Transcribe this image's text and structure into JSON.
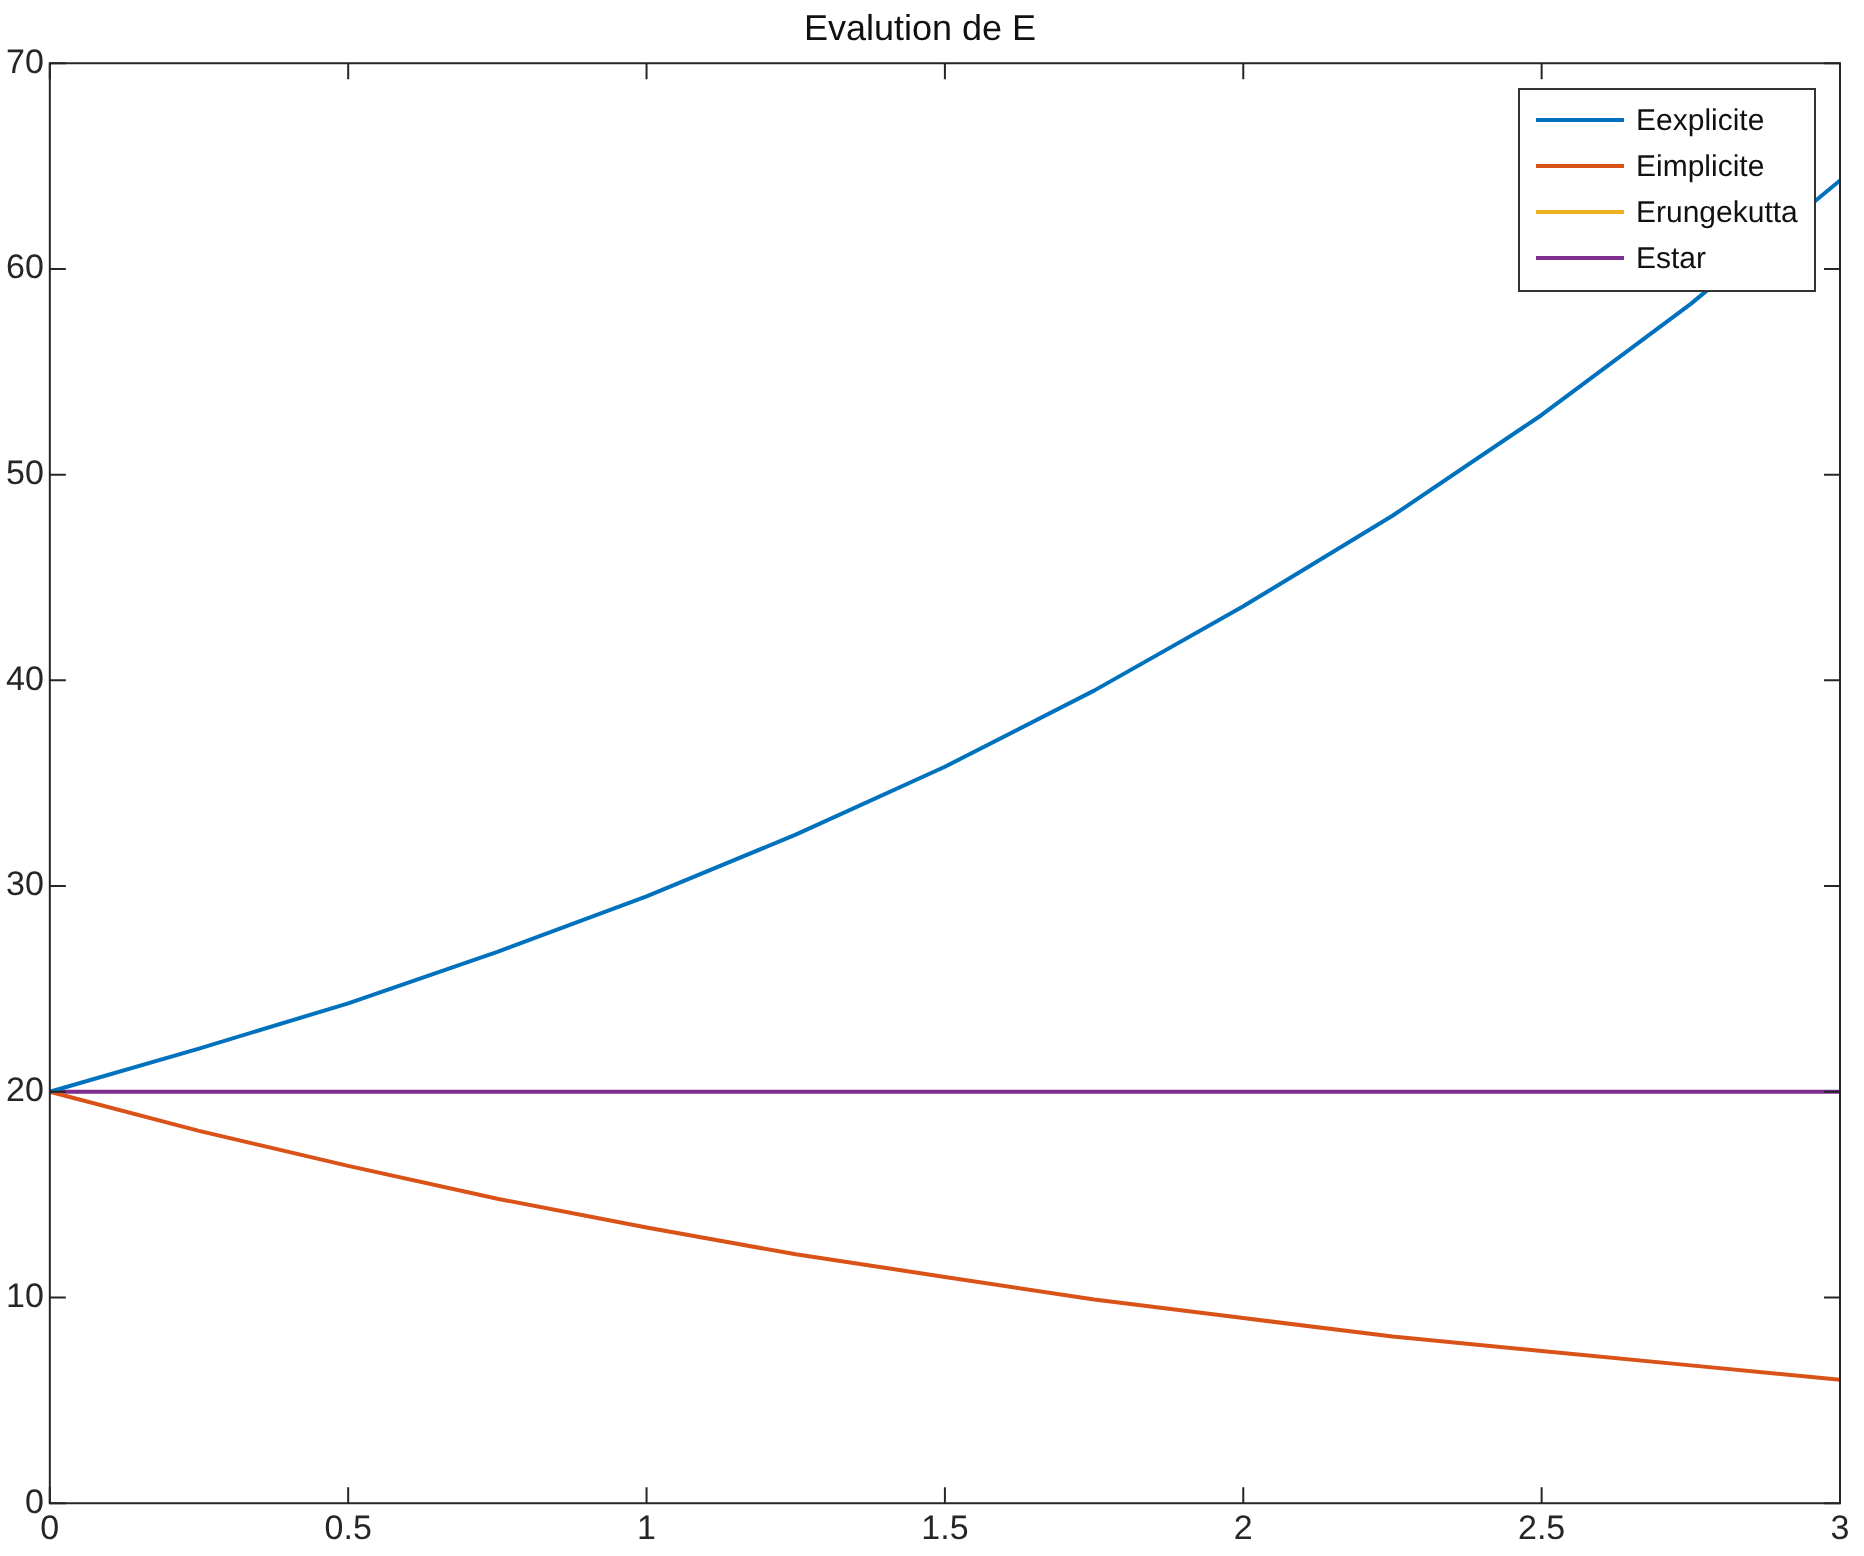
{
  "chart_data": {
    "type": "line",
    "title": "Evalution de E",
    "x": [
      0,
      0.25,
      0.5,
      0.75,
      1,
      1.25,
      1.5,
      1.75,
      2,
      2.25,
      2.5,
      2.75,
      3
    ],
    "series": [
      {
        "name": "Eexplicite",
        "color": "#0072bd",
        "values": [
          20,
          22.1,
          24.3,
          26.8,
          29.5,
          32.5,
          35.8,
          39.5,
          43.6,
          48.0,
          52.9,
          58.3,
          64.3
        ]
      },
      {
        "name": "Eimplicite",
        "color": "#d95319",
        "values": [
          20,
          18.1,
          16.4,
          14.8,
          13.4,
          12.1,
          11.0,
          9.9,
          9.0,
          8.1,
          7.4,
          6.7,
          6.0
        ]
      },
      {
        "name": "Erungekutta",
        "color": "#edb120",
        "values": [
          null,
          null,
          null,
          null,
          null,
          null,
          null,
          null,
          null,
          null,
          null,
          null,
          null
        ]
      },
      {
        "name": "Estar",
        "color": "#7e2f8e",
        "values": [
          20,
          20,
          20,
          20,
          20,
          20,
          20,
          20,
          20,
          20,
          20,
          20,
          20
        ]
      }
    ],
    "xlim": [
      0,
      3
    ],
    "xticks": [
      0,
      0.5,
      1,
      1.5,
      2,
      2.5,
      3
    ],
    "ylim": [
      0,
      70
    ],
    "yticks": [
      0,
      10,
      20,
      30,
      40,
      50,
      60,
      70
    ],
    "grid": false,
    "legend": "top right",
    "marker": "none",
    "line_style": "solid"
  }
}
